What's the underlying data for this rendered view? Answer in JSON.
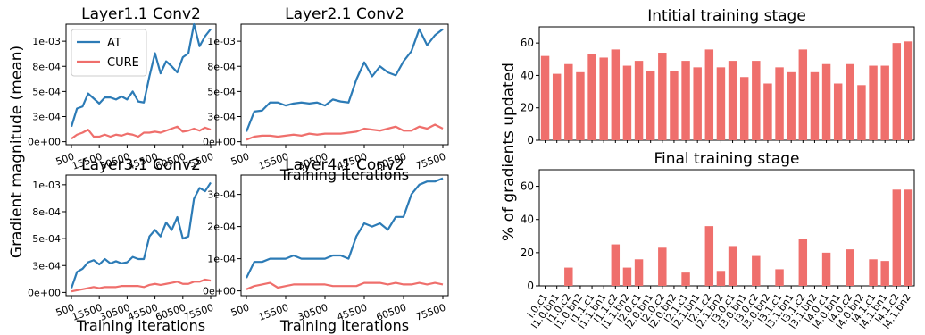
{
  "figure": {
    "shared_ylabel_left": "Gradient magnitude (mean)",
    "shared_ylabel_right": "% of gradients updated"
  },
  "colors": {
    "AT": "#2c7bb6",
    "CURE": "#ef6f6c",
    "bar": "#ef6f6c"
  },
  "chart_data": [
    {
      "type": "line",
      "title": "Layer1.1 Conv2",
      "xlabel": "",
      "ylabel": "",
      "x_ticks": [
        "500",
        "15500",
        "30500",
        "45500",
        "60500",
        "75500"
      ],
      "y_ticks": [
        "0e+00",
        "3e-04",
        "5e-04",
        "8e-04",
        "1e-03"
      ],
      "ylim": [
        -3e-05,
        0.00117
      ],
      "legend": {
        "position": "top-left",
        "entries": [
          "AT",
          "CURE"
        ]
      },
      "x": [
        500,
        3500,
        6500,
        9500,
        12500,
        15500,
        18500,
        21500,
        24500,
        27500,
        30500,
        33500,
        36500,
        39500,
        42500,
        45500,
        48500,
        51500,
        54500,
        57500,
        60500,
        63500,
        66500,
        69500,
        72500,
        75500
      ],
      "series": [
        {
          "name": "AT",
          "values": [
            0.00015,
            0.00033,
            0.00035,
            0.00048,
            0.00043,
            0.00038,
            0.00044,
            0.00044,
            0.00042,
            0.00045,
            0.00042,
            0.0005,
            0.0004,
            0.00039,
            0.00065,
            0.00088,
            0.00068,
            0.0008,
            0.00075,
            0.00069,
            0.00084,
            0.00088,
            0.00117,
            0.00095,
            0.00105,
            0.00112
          ]
        },
        {
          "name": "CURE",
          "values": [
            3e-05,
            7e-05,
            9e-05,
            0.00012,
            5e-05,
            5e-05,
            7e-05,
            5e-05,
            7e-05,
            6e-05,
            8e-05,
            7e-05,
            5e-05,
            9e-05,
            9e-05,
            0.0001,
            9e-05,
            0.00011,
            0.00013,
            0.00015,
            0.0001,
            0.00011,
            0.00013,
            0.00011,
            0.00014,
            0.00012
          ]
        }
      ]
    },
    {
      "type": "line",
      "title": "Layer2.1 Conv2",
      "xlabel": "Training iterations",
      "ylabel": "",
      "x_ticks": [
        "500",
        "15500",
        "30500",
        "45500",
        "60500",
        "75500"
      ],
      "y_ticks": [
        "0e+00",
        "3e-04",
        "5e-04",
        "8e-04",
        "1e-03"
      ],
      "ylim": [
        -3e-05,
        0.00117
      ],
      "x": [
        500,
        3500,
        6500,
        9500,
        12500,
        15500,
        18500,
        21500,
        24500,
        27500,
        30500,
        33500,
        36500,
        39500,
        42500,
        45500,
        48500,
        51500,
        54500,
        57500,
        60500,
        63500,
        66500,
        69500,
        72500,
        75500
      ],
      "series": [
        {
          "name": "AT",
          "values": [
            0.0001,
            0.0003,
            0.00031,
            0.00039,
            0.00039,
            0.00036,
            0.00038,
            0.00039,
            0.00038,
            0.00039,
            0.00036,
            0.00042,
            0.0004,
            0.00039,
            0.00062,
            0.00079,
            0.00065,
            0.00075,
            0.00069,
            0.00066,
            0.0008,
            0.0009,
            0.00112,
            0.00096,
            0.00106,
            0.00112
          ]
        },
        {
          "name": "CURE",
          "values": [
            2e-05,
            5e-05,
            6e-05,
            6e-05,
            5e-05,
            6e-05,
            7e-05,
            6e-05,
            8e-05,
            7e-05,
            8e-05,
            8e-05,
            8e-05,
            9e-05,
            0.0001,
            0.00013,
            0.00012,
            0.00011,
            0.00013,
            0.00015,
            0.00011,
            0.00011,
            0.00015,
            0.00013,
            0.00017,
            0.00013
          ]
        }
      ]
    },
    {
      "type": "line",
      "title": "Layer3.1 Conv2",
      "xlabel": "Training iterations",
      "ylabel": "",
      "x_ticks": [
        "500",
        "15500",
        "30500",
        "45500",
        "60500",
        "75500"
      ],
      "y_ticks": [
        "0e+00",
        "3e-04",
        "5e-04",
        "8e-04",
        "1e-03"
      ],
      "ylim": [
        -3e-05,
        0.00109
      ],
      "x": [
        500,
        3500,
        6500,
        9500,
        12500,
        15500,
        18500,
        21500,
        24500,
        27500,
        30500,
        33500,
        36500,
        39500,
        42500,
        45500,
        48500,
        51500,
        54500,
        57500,
        60500,
        63500,
        66500,
        69500,
        72500,
        75500
      ],
      "series": [
        {
          "name": "AT",
          "values": [
            4e-05,
            0.00019,
            0.00022,
            0.00028,
            0.0003,
            0.00026,
            0.00031,
            0.00027,
            0.00029,
            0.00027,
            0.00028,
            0.00033,
            0.00031,
            0.00031,
            0.00052,
            0.00058,
            0.00052,
            0.00065,
            0.00058,
            0.0007,
            0.0005,
            0.00052,
            0.00087,
            0.00097,
            0.00094,
            0.00102
          ]
        },
        {
          "name": "CURE",
          "values": [
            1e-05,
            2e-05,
            3e-05,
            4e-05,
            5e-05,
            4e-05,
            5e-05,
            5e-05,
            5e-05,
            6e-05,
            6e-05,
            6e-05,
            6e-05,
            5e-05,
            7e-05,
            8e-05,
            7e-05,
            8e-05,
            9e-05,
            0.0001,
            8e-05,
            8e-05,
            0.0001,
            0.0001,
            0.00012,
            0.00011
          ]
        }
      ]
    },
    {
      "type": "line",
      "title": "Layer4.1 Conv2",
      "xlabel": "Training iterations",
      "ylabel": "",
      "x_ticks": [
        "500",
        "15500",
        "30500",
        "45500",
        "60500",
        "75500"
      ],
      "y_ticks": [
        "0e+00",
        "1e-04",
        "2e-04",
        "3e-04"
      ],
      "ylim": [
        -1.5e-05,
        0.00036
      ],
      "x": [
        500,
        3500,
        6500,
        9500,
        12500,
        15500,
        18500,
        21500,
        24500,
        27500,
        30500,
        33500,
        36500,
        39500,
        42500,
        45500,
        48500,
        51500,
        54500,
        57500,
        60500,
        63500,
        66500,
        69500,
        72500,
        75500
      ],
      "series": [
        {
          "name": "AT",
          "values": [
            4e-05,
            9e-05,
            9e-05,
            0.0001,
            0.0001,
            0.0001,
            0.00011,
            0.0001,
            0.0001,
            0.0001,
            0.0001,
            0.00011,
            0.00011,
            0.0001,
            0.00017,
            0.00021,
            0.0002,
            0.00021,
            0.00019,
            0.00023,
            0.00023,
            0.0003,
            0.00033,
            0.00034,
            0.00034,
            0.00035
          ]
        },
        {
          "name": "CURE",
          "values": [
            5e-06,
            1.5e-05,
            2e-05,
            2.5e-05,
            1e-05,
            1.5e-05,
            2e-05,
            2e-05,
            2e-05,
            2e-05,
            2e-05,
            1.5e-05,
            1.5e-05,
            1.5e-05,
            1.5e-05,
            2.5e-05,
            2.5e-05,
            2.5e-05,
            2e-05,
            2.5e-05,
            2e-05,
            2e-05,
            2.5e-05,
            2e-05,
            2.5e-05,
            2e-05
          ]
        }
      ]
    },
    {
      "type": "bar",
      "title": "Intitial training stage",
      "xlabel": "",
      "ylabel": "",
      "y_ticks": [
        "0",
        "20",
        "40",
        "60"
      ],
      "ylim": [
        0,
        70
      ],
      "categories": [
        "l.0.c1",
        "l1.0.bn1",
        "l1.0.c2",
        "l1.0.bn2",
        "l1.1.c1",
        "l1.1.bn1",
        "l1.1.c2",
        "l1.1.bn2",
        "l2.0.c1",
        "l2.0.bn1",
        "l2.0.c2",
        "l2.0.bn2",
        "l2.1.c1",
        "l2.1.bn1",
        "l2.1.c2",
        "l2.1.bn2",
        "l3.0.c1",
        "l3.0.bn1",
        "l3.0.c2",
        "l3.0.bn2",
        "l3.1.c1",
        "l3.1.bn1",
        "l3.1.c2",
        "l3.1.bn2",
        "l4.0.c1",
        "l4.0.bn1",
        "l4.0.c2",
        "l4.0.bn2",
        "l4.1.c1",
        "l4.1.bn1",
        "l4.1.c2",
        "l4.1.bn2"
      ],
      "values": [
        52,
        41,
        47,
        42,
        53,
        51,
        56,
        46,
        49,
        43,
        54,
        43,
        49,
        45,
        56,
        45,
        49,
        39,
        49,
        35,
        45,
        42,
        56,
        42,
        47,
        35,
        47,
        34,
        46,
        46,
        60,
        61
      ]
    },
    {
      "type": "bar",
      "title": "Final training stage",
      "xlabel": "",
      "ylabel": "",
      "y_ticks": [
        "0",
        "20",
        "40",
        "60"
      ],
      "ylim": [
        0,
        70
      ],
      "x_tick_labels": [
        "l.0.c1",
        "l1.0.bn1",
        "l1.0.c2",
        "l1.0.bn2",
        "l1.1.c1",
        "l1.1.bn1",
        "l1.1.c2",
        "l1.1.bn2",
        "l2.0.c1",
        "l2.0.bn1",
        "l2.0.c2",
        "l2.0.bn2",
        "l2.1.c1",
        "l2.1.bn1",
        "l2.1.c2",
        "l2.1.bn2",
        "l3.0.c1",
        "l3.0.bn1",
        "l3.0.c2",
        "l3.0.bn2",
        "l3.1.c1",
        "l3.1.bn1",
        "l3.1.c2",
        "l3.1.bn2",
        "l4.0.c1",
        "l4.0.bn1",
        "l4.0.c2",
        "l4.0.bn2",
        "l4.1.c1",
        "l4.1.bn1",
        "l4.1.c2",
        "l4.1.bn2"
      ],
      "values": [
        0,
        0,
        11,
        0,
        0,
        0,
        25,
        11,
        16,
        0,
        23,
        0,
        8,
        0,
        36,
        9,
        24,
        0,
        18,
        0,
        10,
        0,
        28,
        0,
        20,
        0,
        22,
        0,
        16,
        15,
        58,
        58
      ]
    }
  ]
}
